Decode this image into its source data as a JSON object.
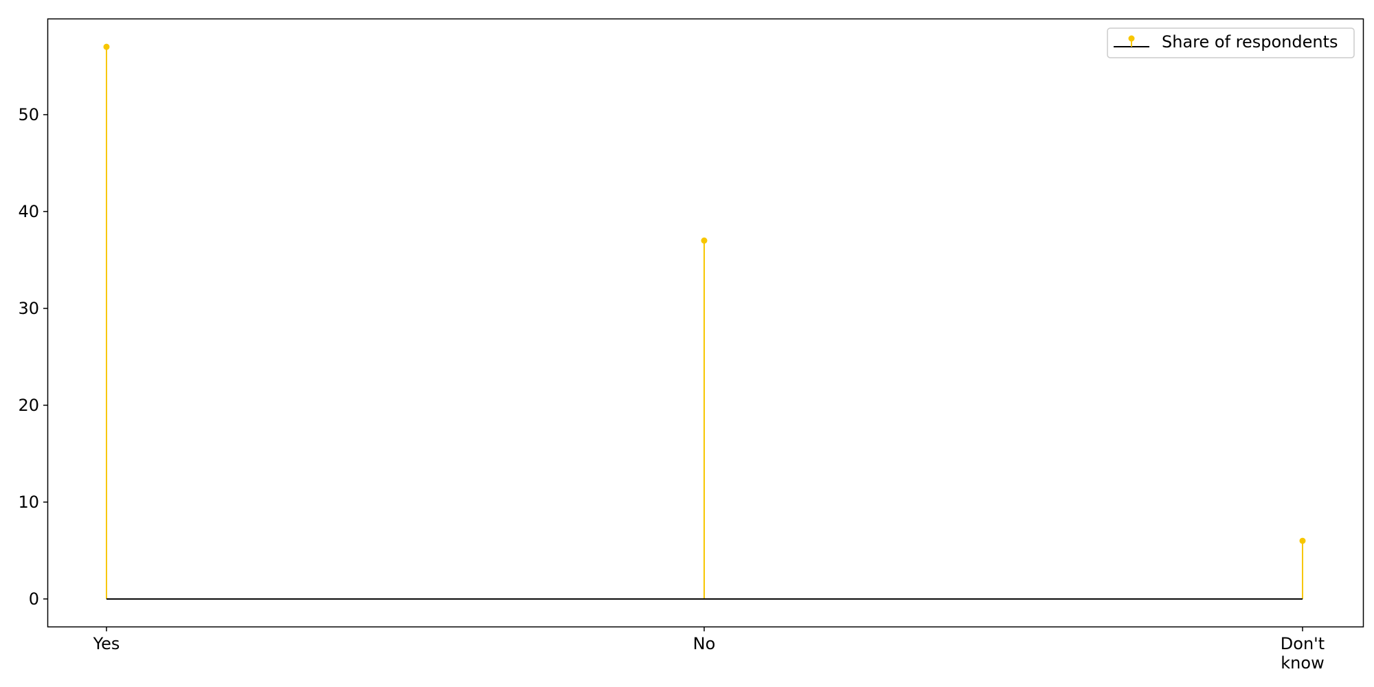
{
  "chart_data": {
    "type": "stem",
    "categories": [
      "Yes",
      "No",
      "Don't know"
    ],
    "category_label_lines": [
      [
        "Yes"
      ],
      [
        "No"
      ],
      [
        "Don't",
        "know"
      ]
    ],
    "series": [
      {
        "name": "Share of respondents",
        "values": [
          57,
          37,
          6
        ],
        "color": "#f7c600"
      }
    ],
    "baseline": 0,
    "baseline_color": "#000000",
    "yticks": [
      0,
      10,
      20,
      30,
      40,
      50
    ],
    "ylim": [
      -2.85,
      59.85
    ],
    "grid": false,
    "legend": {
      "position": "top-right",
      "label": "Share of respondents"
    },
    "title": "",
    "xlabel": "",
    "ylabel": ""
  }
}
